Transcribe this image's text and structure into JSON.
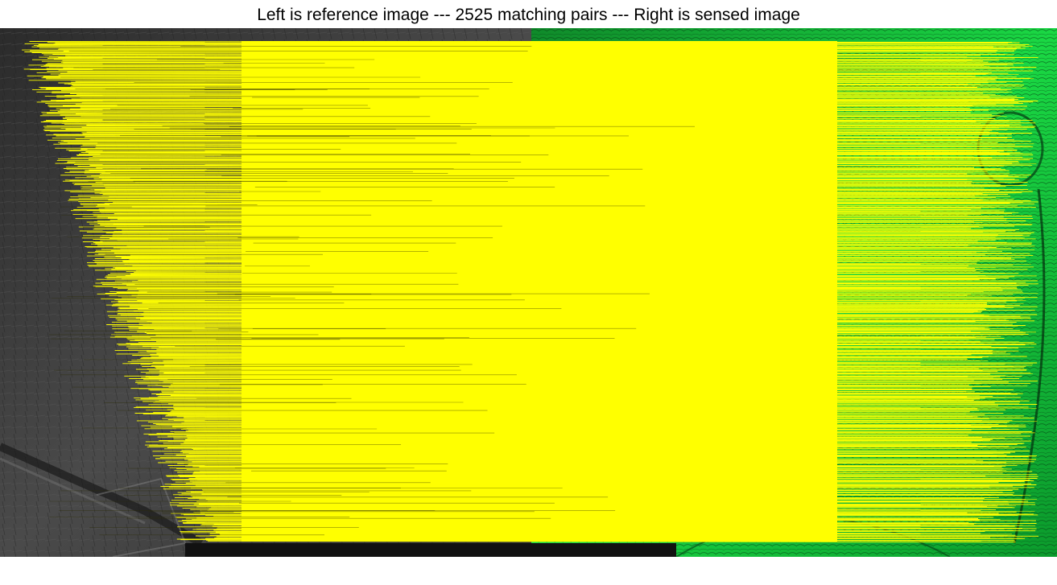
{
  "figure": {
    "title": "Left is reference image --- 2525 matching pairs --- Right is sensed image",
    "left_image_label": "reference image",
    "right_image_label": "sensed image",
    "matching_pairs": 2525
  },
  "colors": {
    "match_line": "#ffff00",
    "reference_base": "#3a3a3a",
    "sensed_base": "#11c73a",
    "background": "#ffffff"
  }
}
